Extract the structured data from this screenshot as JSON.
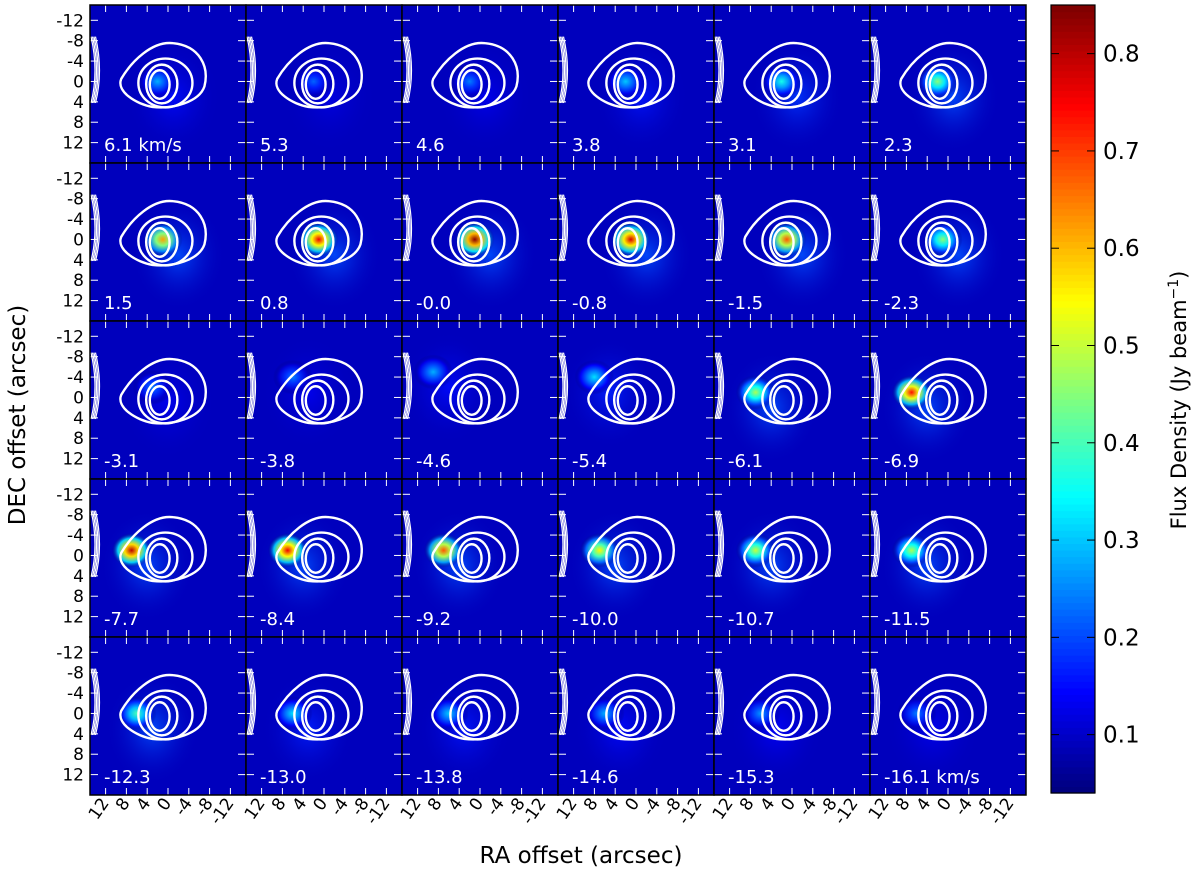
{
  "chart_data": {
    "type": "heatmap",
    "title": "",
    "xlabel": "RA offset (arcsec)",
    "ylabel": "DEC offset (arcsec)",
    "x_ticks": [
      12,
      8,
      4,
      0,
      -4,
      -8,
      -12
    ],
    "x_tick_labels": [
      "12",
      "8",
      "4",
      "0",
      "-4",
      "-8",
      "-12"
    ],
    "y_ticks": [
      -12,
      -8,
      -4,
      0,
      4,
      8,
      12
    ],
    "y_tick_labels": [
      "-12",
      "-8",
      "-4",
      "0",
      "4",
      "8",
      "12"
    ],
    "xlim": [
      15,
      -15
    ],
    "ylim": [
      16,
      -15
    ],
    "grid": "5x6 channel maps",
    "colorbar": {
      "label": "Flux Density (Jy beam",
      "label_sup": "−1",
      "label_close": ")",
      "range": [
        0.04,
        0.85
      ],
      "ticks": [
        0.1,
        0.2,
        0.3,
        0.4,
        0.5,
        0.6,
        0.7,
        0.8
      ],
      "tick_labels": [
        "0.1",
        "0.2",
        "0.3",
        "0.4",
        "0.5",
        "0.6",
        "0.7",
        "0.8"
      ],
      "colormap": "jet",
      "position": "right"
    },
    "contours": {
      "color": "#ffffff",
      "center_ra": 0,
      "center_dec": 0,
      "levels": 4
    },
    "channels": [
      {
        "label": "6.1 km/s",
        "velocity": 6.1,
        "peak": 0.28,
        "peak_ra": 2,
        "peak_dec": 0
      },
      {
        "label": "5.3",
        "velocity": 5.3,
        "peak": 0.22,
        "peak_ra": 2,
        "peak_dec": 0
      },
      {
        "label": "4.6",
        "velocity": 4.6,
        "peak": 0.24,
        "peak_ra": 2,
        "peak_dec": 0
      },
      {
        "label": "3.8",
        "velocity": 3.8,
        "peak": 0.3,
        "peak_ra": 2,
        "peak_dec": 0
      },
      {
        "label": "3.1",
        "velocity": 3.1,
        "peak": 0.36,
        "peak_ra": 2,
        "peak_dec": 0
      },
      {
        "label": "2.3",
        "velocity": 2.3,
        "peak": 0.45,
        "peak_ra": 2,
        "peak_dec": 0
      },
      {
        "label": "1.5",
        "velocity": 1.5,
        "peak": 0.62,
        "peak_ra": 1,
        "peak_dec": 0
      },
      {
        "label": "0.8",
        "velocity": 0.8,
        "peak": 0.76,
        "peak_ra": 1,
        "peak_dec": 0
      },
      {
        "label": "-0.0",
        "velocity": -0.0,
        "peak": 0.84,
        "peak_ra": 1,
        "peak_dec": 0
      },
      {
        "label": "-0.8",
        "velocity": -0.8,
        "peak": 0.78,
        "peak_ra": 1,
        "peak_dec": 0
      },
      {
        "label": "-1.5",
        "velocity": -1.5,
        "peak": 0.68,
        "peak_ra": 1,
        "peak_dec": 0
      },
      {
        "label": "-2.3",
        "velocity": -2.3,
        "peak": 0.45,
        "peak_ra": 1,
        "peak_dec": 0
      },
      {
        "label": "-3.1",
        "velocity": -3.1,
        "peak": 0.24,
        "peak_ra": 3,
        "peak_dec": -2
      },
      {
        "label": "-3.8",
        "velocity": -3.8,
        "peak": 0.24,
        "peak_ra": 6,
        "peak_dec": -4
      },
      {
        "label": "-4.6",
        "velocity": -4.6,
        "peak": 0.28,
        "peak_ra": 9,
        "peak_dec": -5
      },
      {
        "label": "-5.4",
        "velocity": -5.4,
        "peak": 0.32,
        "peak_ra": 8,
        "peak_dec": -4
      },
      {
        "label": "-6.1",
        "velocity": -6.1,
        "peak": 0.48,
        "peak_ra": 7,
        "peak_dec": -1
      },
      {
        "label": "-6.9",
        "velocity": -6.9,
        "peak": 0.74,
        "peak_ra": 7,
        "peak_dec": -1
      },
      {
        "label": "-7.7",
        "velocity": -7.7,
        "peak": 0.8,
        "peak_ra": 7,
        "peak_dec": -1
      },
      {
        "label": "-8.4",
        "velocity": -8.4,
        "peak": 0.76,
        "peak_ra": 7,
        "peak_dec": -1
      },
      {
        "label": "-9.2",
        "velocity": -9.2,
        "peak": 0.68,
        "peak_ra": 7,
        "peak_dec": -1
      },
      {
        "label": "-10.0",
        "velocity": -10.0,
        "peak": 0.55,
        "peak_ra": 7,
        "peak_dec": -1
      },
      {
        "label": "-10.7",
        "velocity": -10.7,
        "peak": 0.5,
        "peak_ra": 7,
        "peak_dec": -1
      },
      {
        "label": "-11.5",
        "velocity": -11.5,
        "peak": 0.48,
        "peak_ra": 7,
        "peak_dec": -1
      },
      {
        "label": "-12.3",
        "velocity": -12.3,
        "peak": 0.4,
        "peak_ra": 6,
        "peak_dec": 0
      },
      {
        "label": "-13.0",
        "velocity": -13.0,
        "peak": 0.32,
        "peak_ra": 6,
        "peak_dec": 0
      },
      {
        "label": "-13.8",
        "velocity": -13.8,
        "peak": 0.3,
        "peak_ra": 6,
        "peak_dec": 0
      },
      {
        "label": "-14.6",
        "velocity": -14.6,
        "peak": 0.28,
        "peak_ra": 6,
        "peak_dec": 0
      },
      {
        "label": "-15.3",
        "velocity": -15.3,
        "peak": 0.26,
        "peak_ra": 6,
        "peak_dec": 0
      },
      {
        "label": "-16.1 km/s",
        "velocity": -16.1,
        "peak": 0.24,
        "peak_ra": 6,
        "peak_dec": 0
      }
    ]
  }
}
